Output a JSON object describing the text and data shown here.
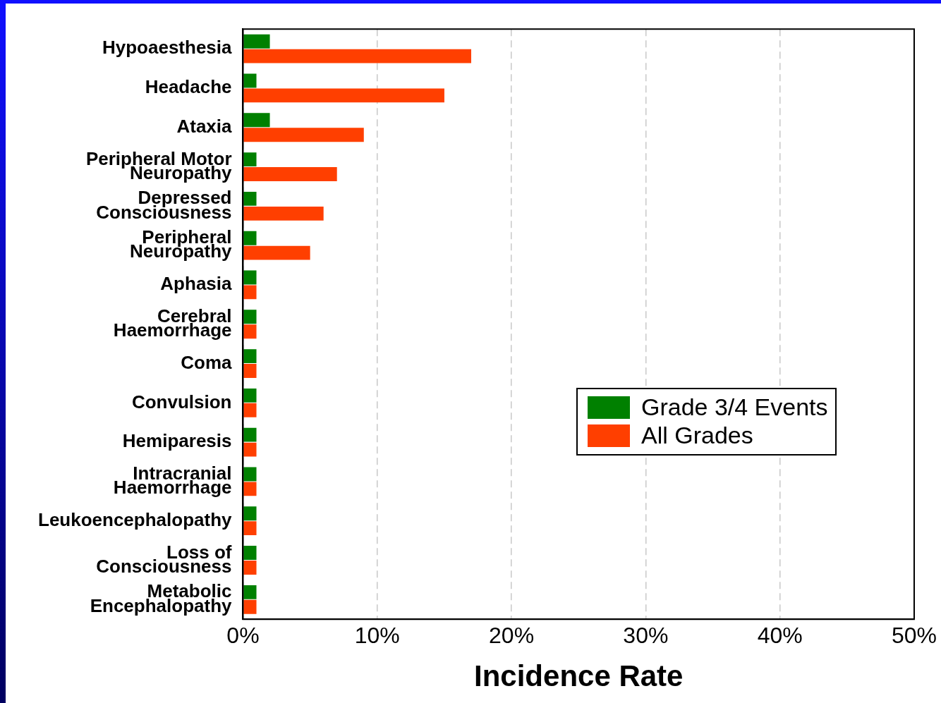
{
  "chart_data": {
    "type": "bar",
    "orientation": "horizontal",
    "xlabel": "Incidence Rate",
    "categories": [
      "Hypoaesthesia",
      "Headache",
      "Ataxia",
      "Peripheral Motor Neuropathy",
      "Depressed Consciousness",
      "Peripheral Neuropathy",
      "Aphasia",
      "Cerebral Haemorrhage",
      "Coma",
      "Convulsion",
      "Hemiparesis",
      "Intracranial Haemorrhage",
      "Leukoencephalopathy",
      "Loss of Consciousness",
      "Metabolic Encephalopathy"
    ],
    "series": [
      {
        "name": "Grade 3/4 Events",
        "color": "#008000",
        "values": [
          2,
          1,
          2,
          1,
          1,
          1,
          1,
          1,
          1,
          1,
          1,
          1,
          1,
          1,
          1
        ]
      },
      {
        "name": "All Grades",
        "color": "#ff3f00",
        "values": [
          17,
          15,
          9,
          7,
          6,
          5,
          1,
          1,
          1,
          1,
          1,
          1,
          1,
          1,
          1
        ]
      }
    ],
    "xlim": [
      0,
      50
    ],
    "xticks": [
      {
        "value": 0,
        "label": "0%"
      },
      {
        "value": 10,
        "label": "10%"
      },
      {
        "value": 20,
        "label": "20%"
      },
      {
        "value": 30,
        "label": "30%"
      },
      {
        "value": 40,
        "label": "40%"
      },
      {
        "value": 50,
        "label": "50%"
      }
    ],
    "grid": "x",
    "legend": "right"
  }
}
